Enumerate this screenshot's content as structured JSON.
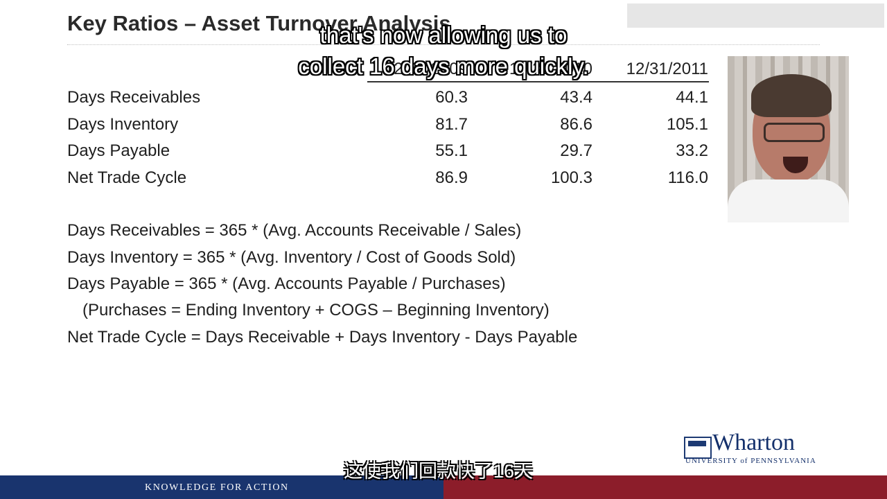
{
  "slide": {
    "title": "Key Ratios – Asset Turnover Analysis",
    "captions": {
      "english_line1": "that's now allowing us to",
      "english_line2": "collect 16 days more quickly.",
      "chinese": "这使我们回款快了16天"
    },
    "columns": [
      "12/31/2009",
      "12/31/2010",
      "12/31/2011"
    ],
    "rows": [
      {
        "label": "Days Receivables",
        "values": [
          "60.3",
          "43.4",
          "44.1"
        ]
      },
      {
        "label": "Days Inventory",
        "values": [
          "81.7",
          "86.6",
          "105.1"
        ]
      },
      {
        "label": "Days Payable",
        "values": [
          "55.1",
          "29.7",
          "33.2"
        ]
      },
      {
        "label": "Net Trade Cycle",
        "values": [
          "86.9",
          "100.3",
          "116.0"
        ]
      }
    ],
    "formulas": [
      "Days Receivables =  365 * (Avg. Accounts Receivable / Sales)",
      "Days Inventory = 365 * (Avg. Inventory / Cost of Goods Sold)",
      "Days Payable = 365 * (Avg. Accounts Payable / Purchases)",
      "(Purchases = Ending Inventory + COGS – Beginning Inventory)",
      "Net Trade Cycle = Days Receivable + Days Inventory - Days Payable"
    ],
    "branding": {
      "logo_name": "Wharton",
      "logo_subtitle": "UNIVERSITY of PENNSYLVANIA",
      "footer_tagline": "KNOWLEDGE FOR ACTION"
    },
    "colors": {
      "navy": "#19346e",
      "maroon": "#8c1d2a"
    }
  }
}
